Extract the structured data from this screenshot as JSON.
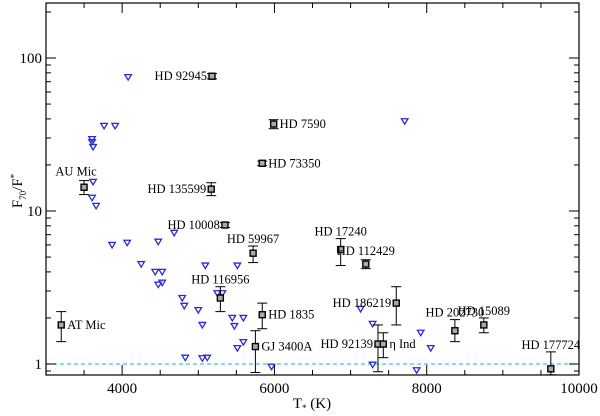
{
  "chart_data": {
    "type": "scatter",
    "title": "",
    "xlabel": "T* (K)",
    "ylabel": "F70/F*",
    "xlim": [
      3000,
      10000
    ],
    "ylim": [
      0.83,
      230
    ],
    "yscale": "log",
    "grid": false,
    "x_ticks": [
      4000,
      6000,
      8000,
      10000
    ],
    "y_ticks": [
      1,
      10,
      100
    ],
    "reference_line": {
      "y": 1,
      "style": "dashed",
      "color": "#3fc6d6"
    },
    "series": [
      {
        "name": "detections",
        "marker": "open-square-with-errorbars",
        "color": "#000000",
        "points": [
          {
            "label": "AT Mic",
            "T": 3200,
            "F": 1.8,
            "F_lo": 1.4,
            "F_hi": 2.2,
            "label_pos": "right"
          },
          {
            "label": "AU Mic",
            "T": 3500,
            "F": 14.3,
            "F_lo": 12.8,
            "F_hi": 15.8,
            "label_pos": "above-left"
          },
          {
            "label": "HD 92945",
            "T": 5180,
            "F": 76,
            "F_lo": 73,
            "F_hi": 79,
            "label_pos": "left"
          },
          {
            "label": "HD 7590",
            "T": 5990,
            "F": 37,
            "F_lo": 34.5,
            "F_hi": 39.5,
            "label_pos": "right"
          },
          {
            "label": "HD 73350",
            "T": 5840,
            "F": 20.5,
            "F_lo": 19.8,
            "F_hi": 21.2,
            "label_pos": "right"
          },
          {
            "label": "HD 135599",
            "T": 5170,
            "F": 13.9,
            "F_lo": 12.6,
            "F_hi": 15.3,
            "label_pos": "left"
          },
          {
            "label": "HD 10008",
            "T": 5350,
            "F": 8.1,
            "F_lo": 7.8,
            "F_hi": 8.4,
            "label_pos": "left"
          },
          {
            "label": "HD 59967",
            "T": 5720,
            "F": 5.3,
            "F_lo": 4.6,
            "F_hi": 5.9,
            "label_pos": "above"
          },
          {
            "label": "HD 116956",
            "T": 5290,
            "F": 2.7,
            "F_lo": 2.2,
            "F_hi": 3.2,
            "label_pos": "above"
          },
          {
            "label": "HD 1835",
            "T": 5840,
            "F": 2.1,
            "F_lo": 1.7,
            "F_hi": 2.5,
            "label_pos": "right"
          },
          {
            "label": "GJ 3400A",
            "T": 5750,
            "F": 1.3,
            "F_lo": 0.88,
            "F_hi": 1.65,
            "label_pos": "right"
          },
          {
            "label": "HD 17240",
            "T": 6870,
            "F": 5.6,
            "F_lo": 4.4,
            "F_hi": 6.6,
            "label_pos": "above"
          },
          {
            "label": "HD 112429",
            "T": 7200,
            "F": 4.5,
            "F_lo": 4.2,
            "F_hi": 4.8,
            "label_pos": "above"
          },
          {
            "label": "HD 186219",
            "T": 7600,
            "F": 2.5,
            "F_lo": 1.8,
            "F_hi": 3.2,
            "label_pos": "left"
          },
          {
            "label": "HD 92139",
            "T": 7360,
            "F": 1.35,
            "F_lo": 0.89,
            "F_hi": 1.8,
            "label_pos": "left"
          },
          {
            "label": "η Ind",
            "T": 7430,
            "F": 1.35,
            "F_lo": 1.1,
            "F_hi": 1.6,
            "label_pos": "right"
          },
          {
            "label": "HD 202730",
            "T": 8370,
            "F": 1.65,
            "F_lo": 1.4,
            "F_hi": 1.95,
            "label_pos": "above"
          },
          {
            "label": "HD 15089",
            "T": 8750,
            "F": 1.8,
            "F_lo": 1.6,
            "F_hi": 2.0,
            "label_pos": "above"
          },
          {
            "label": "HD 177724",
            "T": 9630,
            "F": 0.93,
            "F_lo": 0.85,
            "F_hi": 1.2,
            "label_pos": "above"
          }
        ]
      },
      {
        "name": "upper limits",
        "marker": "open-triangle-down",
        "color": "#2a2ad8",
        "points": [
          {
            "T": 4079,
            "F": 75.0
          },
          {
            "T": 3763,
            "F": 36.0
          },
          {
            "T": 3908,
            "F": 36.0
          },
          {
            "T": 3605,
            "F": 29.5
          },
          {
            "T": 3605,
            "F": 28.2
          },
          {
            "T": 3618,
            "F": 26.2
          },
          {
            "T": 3618,
            "F": 15.5
          },
          {
            "T": 3605,
            "F": 12.2
          },
          {
            "T": 3658,
            "F": 10.8
          },
          {
            "T": 3868,
            "F": 6.0
          },
          {
            "T": 4066,
            "F": 6.2
          },
          {
            "T": 4474,
            "F": 6.3
          },
          {
            "T": 4684,
            "F": 7.2
          },
          {
            "T": 4250,
            "F": 4.5
          },
          {
            "T": 4434,
            "F": 4.0
          },
          {
            "T": 4526,
            "F": 4.0
          },
          {
            "T": 4474,
            "F": 3.3
          },
          {
            "T": 4526,
            "F": 3.4
          },
          {
            "T": 5092,
            "F": 4.4
          },
          {
            "T": 5513,
            "F": 4.4
          },
          {
            "T": 5250,
            "F": 2.9
          },
          {
            "T": 5316,
            "F": 2.9
          },
          {
            "T": 5447,
            "F": 2.0
          },
          {
            "T": 5592,
            "F": 2.0
          },
          {
            "T": 5474,
            "F": 1.77
          },
          {
            "T": 4789,
            "F": 2.7
          },
          {
            "T": 4816,
            "F": 2.4
          },
          {
            "T": 5000,
            "F": 2.25
          },
          {
            "T": 5053,
            "F": 1.8
          },
          {
            "T": 4829,
            "F": 1.1
          },
          {
            "T": 5053,
            "F": 1.09
          },
          {
            "T": 5118,
            "F": 1.1
          },
          {
            "T": 5513,
            "F": 1.27
          },
          {
            "T": 5592,
            "F": 1.39
          },
          {
            "T": 5961,
            "F": 0.96
          },
          {
            "T": 7132,
            "F": 2.29
          },
          {
            "T": 7289,
            "F": 1.83
          },
          {
            "T": 7921,
            "F": 1.6
          },
          {
            "T": 8053,
            "F": 1.27
          },
          {
            "T": 7289,
            "F": 0.99
          },
          {
            "T": 7868,
            "F": 0.91
          },
          {
            "T": 7711,
            "F": 38.6
          }
        ]
      }
    ]
  },
  "axes": {
    "x_title_main": "T",
    "x_title_sub": "*",
    "x_title_unit": " (K)",
    "y_title_main": "F",
    "y_title_sub": "70",
    "y_title_sep": "/F",
    "y_title_sub2": "*"
  }
}
